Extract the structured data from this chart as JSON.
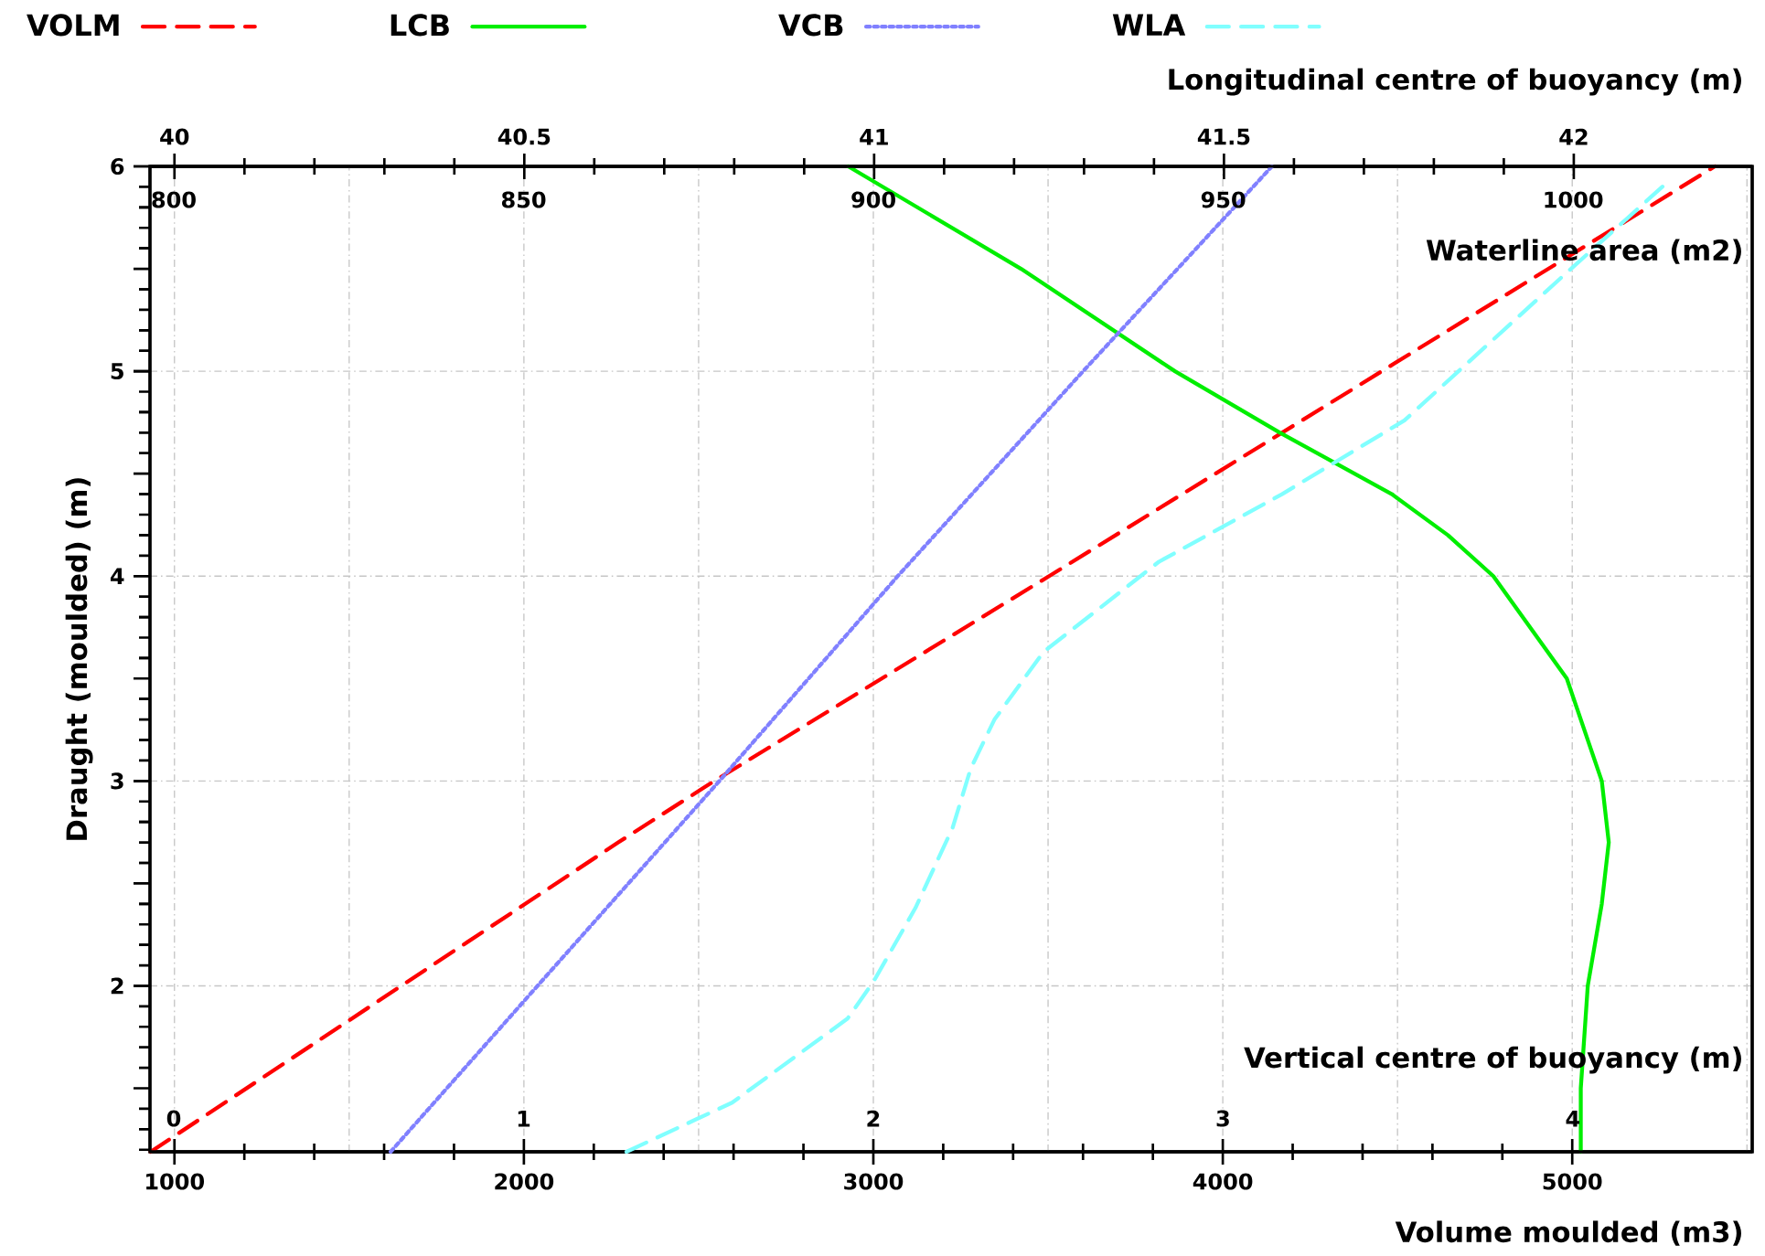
{
  "chart_data": [
    {
      "type": "line",
      "xlabel": "Volume moulded (m3)",
      "x2label": "Longitudinal centre of buoyancy (m)",
      "ylabel": "Draught (moulded) (m)",
      "xlim": [
        930,
        5515
      ],
      "xticks": [
        1000,
        2000,
        3000,
        4000,
        5000
      ],
      "x2lim": [
        39.965,
        42.255
      ],
      "x2ticks": [
        40,
        40.5,
        41,
        41.5,
        42
      ],
      "ylim": [
        1.19,
        6
      ],
      "yticks": [
        2,
        3,
        4,
        5,
        6
      ],
      "grid": true,
      "legend": "top left",
      "marker": "none",
      "series": [
        {
          "name": "VOLM",
          "color": "#ff0000",
          "line_style": "dashed",
          "x": [
            932,
            1649,
            2270,
            2545,
            3503,
            4455,
            5408
          ],
          "values": [
            1.19,
            2,
            2.7,
            3,
            4,
            5,
            6
          ]
        },
        {
          "name": "LCB",
          "color": "#00ee00",
          "line_style": "solid",
          "axis": "x2",
          "x": [
            42.01,
            42.01,
            42.02,
            42.04,
            42.05,
            42.04,
            41.99,
            41.885,
            41.82,
            41.74,
            41.58,
            41.43,
            41.21,
            40.963
          ],
          "values": [
            1.19,
            1.5,
            2,
            2.4,
            2.7,
            3,
            3.5,
            4,
            4.2,
            4.4,
            4.7,
            5,
            5.5,
            6
          ]
        }
      ]
    },
    {
      "type": "line",
      "xlabel": "Vertical centre of buoyancy (m)",
      "x2label": "Waterline area (m2)",
      "xlim": [
        -0.068,
        4.513
      ],
      "xticks": [
        0,
        1,
        2,
        3,
        4
      ],
      "x2lim": [
        796.6,
        1025.6
      ],
      "x2ticks": [
        800,
        850,
        900,
        950,
        1000
      ],
      "ylim": [
        1.19,
        6
      ],
      "tick_labels": "x",
      "legend": "top",
      "marker": "none",
      "series": [
        {
          "name": "VCB",
          "color": "#8080ff",
          "line_style": "dotted",
          "x": [
            0.62,
            1.04,
            1.56,
            2.07,
            2.6,
            3.14
          ],
          "values": [
            1.19,
            2,
            3,
            4,
            5,
            6
          ]
        },
        {
          "name": "WLA",
          "color": "#80ffff",
          "line_style": "dashed",
          "axis": "x2",
          "x": [
            864.7,
            879.8,
            896.3,
            900.0,
            906.0,
            911.3,
            913.9,
            917.3,
            924.3,
            932.2,
            940.8,
            958.4,
            975.9,
            999.7,
            1013.4
          ],
          "values": [
            1.19,
            1.43,
            1.84,
            2.02,
            2.38,
            2.77,
            3.06,
            3.3,
            3.63,
            3.84,
            4.07,
            4.4,
            4.76,
            5.5,
            5.92
          ]
        }
      ]
    }
  ]
}
